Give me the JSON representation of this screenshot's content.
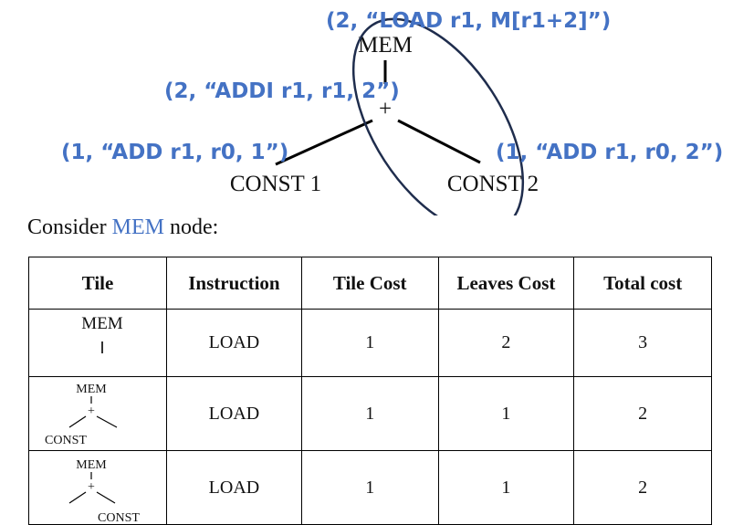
{
  "tree": {
    "root_label": "MEM",
    "plus_label": "+",
    "left_leaf_label": "CONST 1",
    "right_leaf_label": "CONST 2"
  },
  "annotations": {
    "mem": "(2, “LOAD r1, M[r1+2]”)",
    "plus": "(2, “ADDI r1, r1, 2”)",
    "left_const": "(1, “ADD r1, r0, 1”)",
    "right_const": "(1, “ADD r1, r0, 2”)"
  },
  "caption": {
    "prefix": "Consider ",
    "highlight": "MEM",
    "suffix": " node:"
  },
  "table": {
    "headers": [
      "Tile",
      "Instruction",
      "Tile Cost",
      "Leaves Cost",
      "Total cost"
    ],
    "rows": [
      {
        "tile": {
          "top": "MEM",
          "bottom": ""
        },
        "instruction": "LOAD",
        "tile_cost": "1",
        "leaves_cost": "2",
        "total_cost": "3"
      },
      {
        "tile": {
          "top": "MEM",
          "bottom": "CONST"
        },
        "instruction": "LOAD",
        "tile_cost": "1",
        "leaves_cost": "1",
        "total_cost": "2"
      },
      {
        "tile": {
          "top": "MEM",
          "bottom": "CONST"
        },
        "instruction": "LOAD",
        "tile_cost": "1",
        "leaves_cost": "1",
        "total_cost": "2"
      }
    ]
  },
  "colors": {
    "annotation": "#4472C4",
    "ellipse": "#1F2D4D"
  }
}
